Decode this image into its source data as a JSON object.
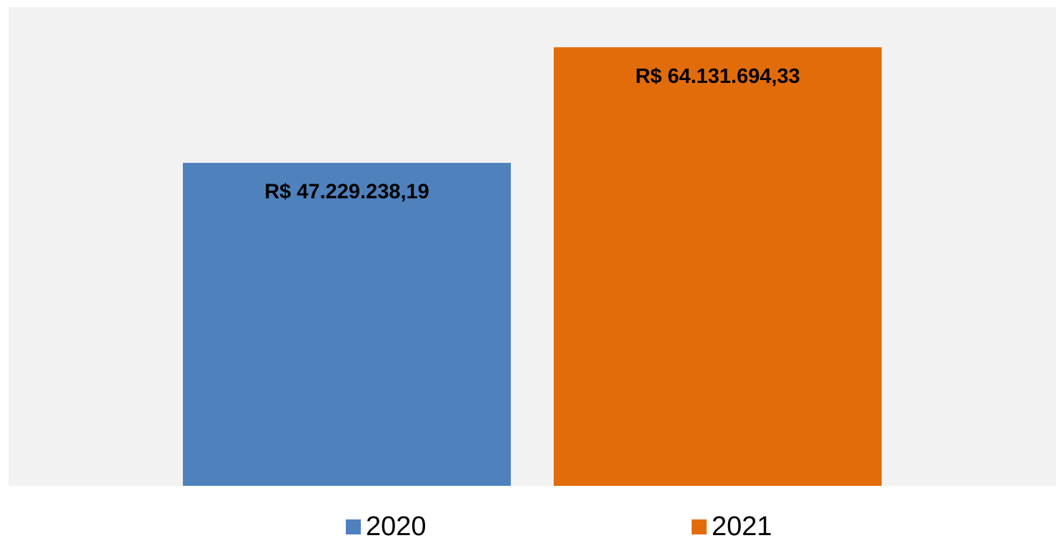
{
  "chart_data": {
    "type": "bar",
    "categories": [
      null
    ],
    "series": [
      {
        "name": "2020",
        "color": "#4f81bd",
        "values": [
          47229238.19
        ],
        "value_labels": [
          "R$ 47.229.238,19"
        ]
      },
      {
        "name": "2021",
        "color": "#e36c0a",
        "values": [
          64131694.33
        ],
        "value_labels": [
          "R$ 64.131.694,33"
        ]
      }
    ],
    "ylim": [
      0,
      70000000
    ],
    "legend": "bottom"
  }
}
